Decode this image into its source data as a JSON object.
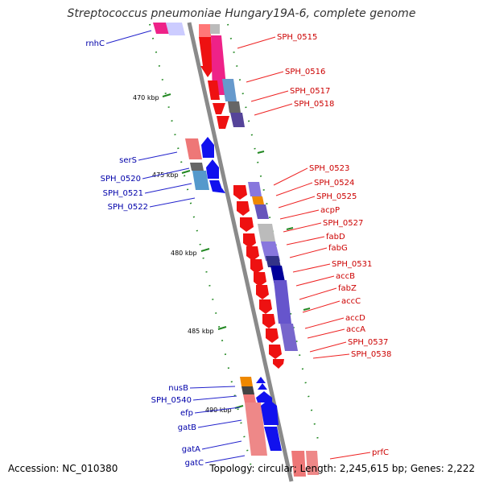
{
  "title": "Streptococcus pneumoniae Hungary19A-6, complete genome",
  "footer": {
    "accession": "Accession: NC_010380",
    "summary": "Topology: circular; Length: 2,245,615 bp; Genes: 2,222"
  },
  "ruler_labels": [
    "470 kbp",
    "475 kbp",
    "480 kbp",
    "485 kbp",
    "490 kbp"
  ],
  "right_labels": [
    "SPH_0515",
    "SPH_0516",
    "SPH_0517",
    "SPH_0518",
    "SPH_0523",
    "SPH_0524",
    "SPH_0525",
    "acpP",
    "SPH_0527",
    "fabD",
    "fabG",
    "SPH_0531",
    "accB",
    "fabZ",
    "accC",
    "accD",
    "accA",
    "SPH_0537",
    "SPH_0538",
    "prfC"
  ],
  "left_labels": [
    "rnhC",
    "serS",
    "SPH_0520",
    "SPH_0521",
    "SPH_0522",
    "nusB",
    "SPH_0540",
    "efp",
    "gatB",
    "gatA",
    "gatC"
  ],
  "colors": {
    "forward_gene": "#ee1111",
    "reverse_gene": "#1111ee",
    "backbone": "#8a8a8a",
    "ruler_tick": "#228822",
    "right_label": "#cc0000",
    "left_label": "#0000aa"
  }
}
